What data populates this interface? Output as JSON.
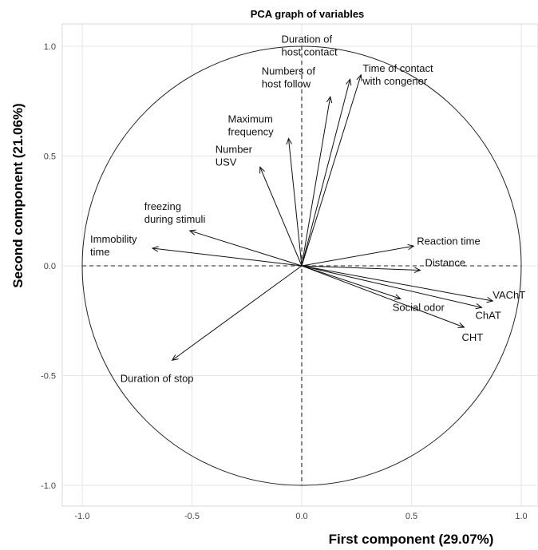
{
  "chart_data": {
    "type": "scatter",
    "subtype": "pca-correlation-circle",
    "title": "PCA graph of variables",
    "xlabel": "First component (29.07%)",
    "ylabel": "Second component (21.06%)",
    "xlim": [
      -1.1,
      1.1
    ],
    "ylim": [
      -1.1,
      1.1
    ],
    "x_ticks": [
      -1.0,
      -0.5,
      0.0,
      0.5,
      1.0
    ],
    "y_ticks": [
      1.0,
      0.5,
      0.0,
      -0.5,
      -1.0
    ],
    "x_tick_labels": [
      "-1.0",
      "-0.5",
      "0.0",
      "0.5",
      "1.0"
    ],
    "y_tick_labels": [
      "1.0",
      "0.5",
      "0.0",
      "-0.5",
      "-1.0"
    ],
    "grid": true,
    "unit_circle": true,
    "vectors": [
      {
        "lines": [
          "Duration of",
          "host contact"
        ],
        "x": 0.22,
        "y": 0.85
      },
      {
        "lines": [
          "Time of contact",
          "with congener"
        ],
        "x": 0.27,
        "y": 0.87
      },
      {
        "lines": [
          "Numbers of",
          "host follow"
        ],
        "x": 0.13,
        "y": 0.77
      },
      {
        "lines": [
          "Maximum",
          "frequency"
        ],
        "x": -0.06,
        "y": 0.58
      },
      {
        "lines": [
          "Number",
          "USV"
        ],
        "x": -0.19,
        "y": 0.45
      },
      {
        "lines": [
          "freezing",
          "during stimuli"
        ],
        "x": -0.51,
        "y": 0.16
      },
      {
        "lines": [
          "Immobility",
          "time"
        ],
        "x": -0.68,
        "y": 0.08
      },
      {
        "lines": [
          "Reaction time"
        ],
        "x": 0.51,
        "y": 0.09
      },
      {
        "lines": [
          "Distance"
        ],
        "x": 0.54,
        "y": -0.02
      },
      {
        "lines": [
          "VAChT"
        ],
        "x": 0.87,
        "y": -0.16
      },
      {
        "lines": [
          "ChAT"
        ],
        "x": 0.82,
        "y": -0.19
      },
      {
        "lines": [
          "Social odor"
        ],
        "x": 0.45,
        "y": -0.15
      },
      {
        "lines": [
          "CHT"
        ],
        "x": 0.74,
        "y": -0.28
      },
      {
        "lines": [
          "Duration of stop"
        ],
        "x": -0.59,
        "y": -0.43
      }
    ]
  }
}
